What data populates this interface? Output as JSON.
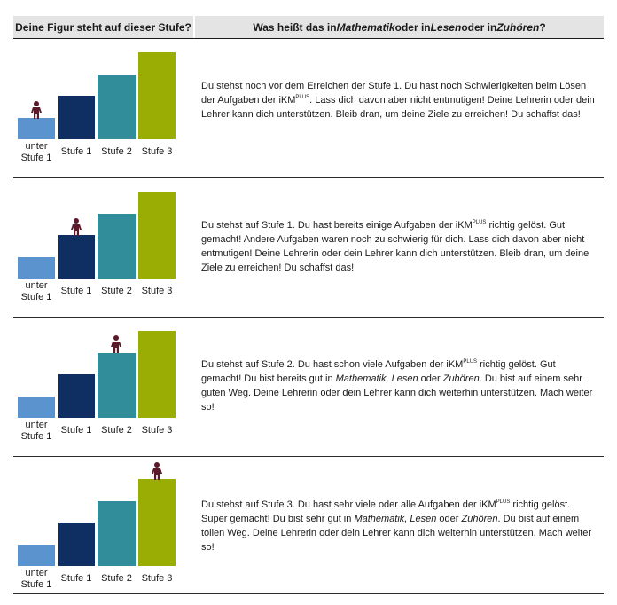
{
  "header": {
    "col1": "Deine Figur steht auf dieser Stufe?",
    "col2_prefix": "Was heißt das in ",
    "col2_math": "Mathematik",
    "col2_mid1": " oder in ",
    "col2_lesen": "Lesen",
    "col2_mid2": " oder in ",
    "col2_zuhoeren": "Zuhören",
    "col2_suffix": "?"
  },
  "labels": {
    "unter": "unter",
    "stufe1_below": "Stufe 1",
    "stufe1": "Stufe 1",
    "stufe2": "Stufe 2",
    "stufe3": "Stufe 3"
  },
  "colors": {
    "unter": "#5b93cf",
    "stufe1": "#0f2f63",
    "stufe2": "#308d99",
    "stufe3": "#99ad04",
    "figure": "#5a1a2a"
  },
  "brand": {
    "name": "iKM",
    "sup": "PLUS"
  },
  "rows": [
    {
      "level": "unter Stufe 1",
      "p1": "Du stehst noch vor dem Erreichen der Stufe 1. Du hast noch Schwierigkeiten beim Lösen der Aufgaben der ",
      "p2": ". Lass dich davon aber nicht entmutigen! Deine Lehrerin oder dein Lehrer kann dich unterstützen. Bleib dran, um deine Ziele zu erreichen! Du schaffst das!"
    },
    {
      "level": "Stufe 1",
      "p1": "Du stehst auf Stufe 1. Du hast bereits einige Aufgaben der ",
      "p2": " richtig gelöst. Gut gemacht! Andere Aufgaben waren noch zu schwierig für dich. Lass dich davon aber nicht entmutigen!  Deine Lehrerin oder dein Lehrer kann dich unterstützen. Bleib dran, um deine Ziele zu erreichen! Du schaffst das!"
    },
    {
      "level": "Stufe 2",
      "p1": "Du stehst auf Stufe 2. Du hast schon viele Aufgaben der ",
      "p2": " richtig gelöst. Gut gemacht! Du bist bereits gut in ",
      "math": "Mathematik, Lesen",
      "oder": " oder ",
      "zuh": "Zuhören",
      "p3": ". Du bist auf einem sehr guten Weg. Deine Lehrerin oder dein Lehrer kann dich weiterhin unterstützen. Mach weiter so!"
    },
    {
      "level": "Stufe 3",
      "p1": "Du stehst auf Stufe 3. Du hast sehr viele oder alle Aufgaben der ",
      "p2": " richtig gelöst. Super gemacht! Du bist sehr gut in ",
      "math": "Mathematik, Lesen",
      "oder": " oder ",
      "zuh": "Zuhören",
      "p3": ". Du bist auf einem tollen Weg. Deine Lehrerin oder dein Lehrer kann dich weiterhin unterstützen. Mach weiter so!"
    }
  ]
}
